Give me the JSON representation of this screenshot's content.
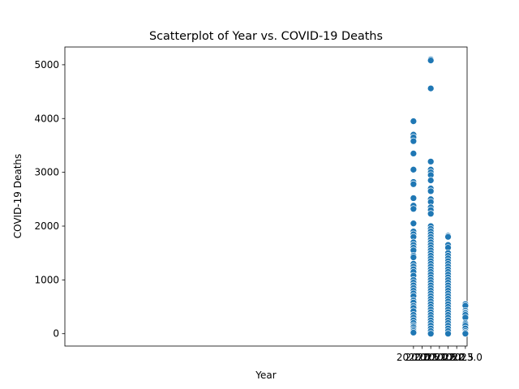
{
  "chart_data": {
    "type": "scatter",
    "title": "Scatterplot of Year vs. COVID-19 Deaths",
    "xlabel": "Year",
    "ylabel": "COVID-19 Deaths",
    "xlim": [
      1999.85,
      2023.1
    ],
    "ylim": [
      -230,
      5330
    ],
    "x_ticks": [
      "2020.0",
      "2020.5",
      "2021.0",
      "2021.5",
      "2022.0",
      "2022.5",
      "2023.0"
    ],
    "y_ticks": [
      "0",
      "1000",
      "2000",
      "3000",
      "4000",
      "5000"
    ],
    "grid": false,
    "marker_color": "#1f77b4",
    "series": [
      {
        "x": 2020.0,
        "values": [
          3950,
          3700,
          3650,
          3580,
          3350,
          3050,
          2820,
          2780,
          2520,
          2380,
          2320,
          2050,
          1900,
          1850,
          1800,
          1700,
          1650,
          1600,
          1550,
          1450,
          1420,
          1300,
          1250,
          1200,
          1150,
          1080,
          1000,
          950,
          900,
          850,
          800,
          750,
          700,
          620,
          580,
          520,
          480,
          420,
          350,
          300,
          250,
          200,
          150,
          120,
          80,
          50,
          20
        ]
      },
      {
        "x": 2021.0,
        "values": [
          5100,
          5080,
          4560,
          3200,
          3050,
          3000,
          2950,
          2850,
          2700,
          2650,
          2500,
          2450,
          2350,
          2300,
          2230,
          2000,
          1950,
          1900,
          1850,
          1800,
          1750,
          1700,
          1650,
          1600,
          1550,
          1500,
          1450,
          1400,
          1350,
          1300,
          1250,
          1200,
          1150,
          1100,
          1050,
          1000,
          950,
          900,
          850,
          800,
          750,
          700,
          650,
          600,
          550,
          500,
          450,
          400,
          350,
          300,
          250,
          200,
          150,
          100,
          50,
          0
        ]
      },
      {
        "x": 2022.0,
        "values": [
          1820,
          1800,
          1650,
          1600,
          1500,
          1450,
          1400,
          1350,
          1300,
          1250,
          1200,
          1150,
          1100,
          1050,
          1000,
          950,
          900,
          850,
          800,
          750,
          700,
          650,
          600,
          550,
          500,
          450,
          400,
          350,
          300,
          250,
          200,
          150,
          100,
          50,
          0
        ]
      },
      {
        "x": 2023.0,
        "values": [
          550,
          520,
          430,
          400,
          380,
          350,
          300,
          200,
          180,
          150,
          100,
          50,
          20,
          0
        ]
      }
    ]
  }
}
